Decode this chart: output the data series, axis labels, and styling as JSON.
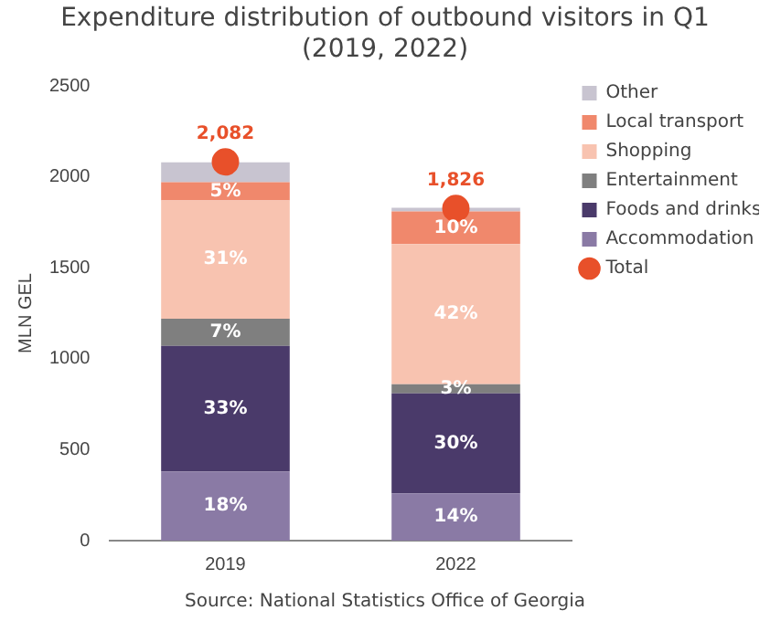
{
  "chart_data": {
    "type": "bar",
    "title": "Expenditure distribution of outbound visitors in Q1",
    "subtitle": "(2019, 2022)",
    "ylabel": "MLN GEL",
    "categories": [
      "2019",
      "2022"
    ],
    "stacked": true,
    "ylim": [
      0,
      2500
    ],
    "yticks": [
      0,
      500,
      1000,
      1500,
      2000,
      2500
    ],
    "grid": false,
    "legend": "top right",
    "series": [
      {
        "name": "Accommodation",
        "color": "#8a7aa5",
        "values": [
          380,
          260
        ]
      },
      {
        "name": "Foods and drinks",
        "color": "#4a3a6a",
        "values": [
          690,
          550
        ]
      },
      {
        "name": "Entertainment",
        "color": "#7f7f7f",
        "values": [
          150,
          50
        ]
      },
      {
        "name": "Shopping",
        "color": "#f8c3b0",
        "values": [
          650,
          770
        ]
      },
      {
        "name": "Local transport",
        "color": "#f0886c",
        "values": [
          100,
          180
        ]
      },
      {
        "name": "Other",
        "color": "#c8c4d0",
        "values": [
          110,
          20
        ]
      },
      {
        "name": "Total",
        "type": "scatter",
        "color": "#e8502a",
        "values": [
          2082,
          1826
        ],
        "value_labels": [
          "2,082",
          "1,826"
        ]
      }
    ],
    "annotations": [
      "18%",
      "33%",
      "7%",
      "31%",
      "5%",
      "14%",
      "30%",
      "3%",
      "42%",
      "10%",
      "Source: National Statistics Office of Georgia"
    ]
  }
}
